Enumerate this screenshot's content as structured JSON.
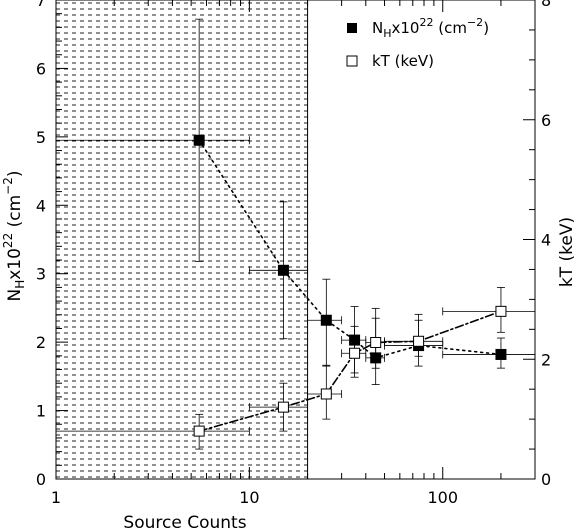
{
  "chart_data": {
    "type": "scatter",
    "xlabel": "Source Counts",
    "ylabel_left": {
      "main": "N",
      "sub": "H",
      "rest": "x10",
      "sup": "22",
      "unit_open": " (cm",
      "unit_sup": "−2",
      "unit_close": ")"
    },
    "ylabel_right": "kT (keV)",
    "x_scale": "log",
    "xlim": [
      1,
      300
    ],
    "ylim_left": [
      0,
      7
    ],
    "ylim_right": [
      0,
      8
    ],
    "x_major_ticks": [
      {
        "value": 1,
        "label": "1"
      },
      {
        "value": 10,
        "label": "10"
      },
      {
        "value": 100,
        "label": "100"
      }
    ],
    "y_left_ticks": [
      {
        "value": 0,
        "label": "0"
      },
      {
        "value": 1,
        "label": "1"
      },
      {
        "value": 2,
        "label": "2"
      },
      {
        "value": 3,
        "label": "3"
      },
      {
        "value": 4,
        "label": "4"
      },
      {
        "value": 5,
        "label": "5"
      },
      {
        "value": 6,
        "label": "6"
      },
      {
        "value": 7,
        "label": "7"
      }
    ],
    "y_right_ticks": [
      {
        "value": 0,
        "label": "0"
      },
      {
        "value": 2,
        "label": "2"
      },
      {
        "value": 4,
        "label": "4"
      },
      {
        "value": 6,
        "label": "6"
      },
      {
        "value": 8,
        "label": "8"
      }
    ],
    "shaded_region": {
      "x_min": 1,
      "x_max": 20
    },
    "legend_position": "top-right",
    "series": [
      {
        "name_parts": {
          "main": "N",
          "sub": "H",
          "rest": "x10",
          "sup": "22",
          "unit_open": " (cm",
          "unit_sup": "−2",
          "unit_close": ")"
        },
        "axis": "left",
        "marker": "filled-square",
        "line": "dotted",
        "points": [
          {
            "x": 5.5,
            "y": 4.95,
            "xerr": [
              1,
              10
            ],
            "yerr": [
              3.18,
              6.72
            ]
          },
          {
            "x": 15,
            "y": 3.05,
            "xerr": [
              10,
              20
            ],
            "yerr": [
              2.05,
              4.05
            ]
          },
          {
            "x": 25,
            "y": 2.32,
            "xerr": [
              20,
              30
            ],
            "yerr": [
              1.65,
              2.92
            ]
          },
          {
            "x": 35,
            "y": 2.03,
            "xerr": [
              30,
              40
            ],
            "yerr": [
              1.55,
              2.52
            ]
          },
          {
            "x": 45,
            "y": 1.77,
            "xerr": [
              40,
              50
            ],
            "yerr": [
              1.38,
              2.35
            ]
          },
          {
            "x": 75,
            "y": 1.95,
            "xerr": [
              50,
              100
            ],
            "yerr": [
              1.65,
              2.32
            ]
          },
          {
            "x": 200,
            "y": 1.82,
            "xerr": [
              100,
              300
            ],
            "yerr": [
              1.62,
              2.06
            ]
          }
        ]
      },
      {
        "name": "kT (keV)",
        "axis": "right",
        "marker": "open-square",
        "line": "dash-dot",
        "points": [
          {
            "x": 5.5,
            "y": 0.8,
            "xerr": [
              1,
              10
            ],
            "yerr": [
              0.5,
              1.08
            ]
          },
          {
            "x": 15,
            "y": 1.2,
            "xerr": [
              10,
              20
            ],
            "yerr": [
              0.8,
              1.6
            ]
          },
          {
            "x": 25,
            "y": 1.42,
            "xerr": [
              20,
              30
            ],
            "yerr": [
              1.0,
              1.9
            ]
          },
          {
            "x": 35,
            "y": 2.1,
            "xerr": [
              30,
              40
            ],
            "yerr": [
              1.7,
              2.55
            ]
          },
          {
            "x": 45,
            "y": 2.28,
            "xerr": [
              40,
              50
            ],
            "yerr": [
              1.85,
              2.85
            ]
          },
          {
            "x": 75,
            "y": 2.3,
            "xerr": [
              50,
              100
            ],
            "yerr": [
              2.05,
              2.75
            ]
          },
          {
            "x": 200,
            "y": 2.8,
            "xerr": [
              100,
              300
            ],
            "yerr": [
              2.45,
              3.2
            ]
          }
        ]
      }
    ]
  }
}
